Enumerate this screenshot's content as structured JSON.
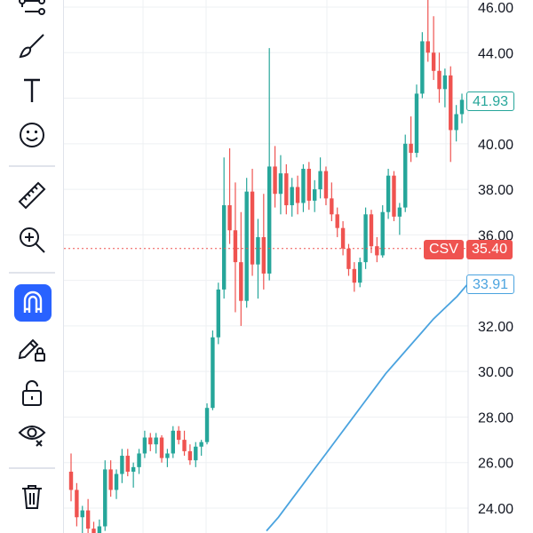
{
  "toolbar": {
    "tools": [
      {
        "name": "trend-lines-icon"
      },
      {
        "name": "brush-icon"
      },
      {
        "name": "text-icon",
        "glyph": "T"
      },
      {
        "name": "emoji-icon"
      },
      {
        "name": "ruler-icon"
      },
      {
        "name": "zoom-in-icon"
      },
      {
        "name": "magnet-icon",
        "active": true
      },
      {
        "name": "lock-drawing-icon"
      },
      {
        "name": "unlock-icon"
      },
      {
        "name": "eye-icon"
      },
      {
        "name": "trash-icon"
      }
    ]
  },
  "price_axis": {
    "ticks": [
      "46.00",
      "44.00",
      "40.00",
      "38.00",
      "36.00",
      "32.00",
      "30.00",
      "28.00",
      "26.00",
      "24.00"
    ]
  },
  "badges": {
    "last_price": "41.93",
    "crosshair_symbol": "CSV",
    "crosshair_price": "35.40",
    "ma_value": "33.91"
  },
  "colors": {
    "up": "#26a69a",
    "down": "#ef5350",
    "ma": "#4aa3df",
    "crosshair": "#ef5350",
    "active_tool": "#2962ff",
    "grid": "#eef0f3"
  },
  "chart_data": {
    "type": "candlestick",
    "y_range": [
      23,
      46.4
    ],
    "crosshair_y": 35.4,
    "candles": [
      [
        25.6,
        26.4,
        24.3,
        24.8
      ],
      [
        24.8,
        25.1,
        23.2,
        23.6
      ],
      [
        23.6,
        24.1,
        22.8,
        23.9
      ],
      [
        23.9,
        24.4,
        22.9,
        23.1
      ],
      [
        23.1,
        23.4,
        22.5,
        22.8
      ],
      [
        22.8,
        23.5,
        22.4,
        23.2
      ],
      [
        23.2,
        26.1,
        23.0,
        25.7
      ],
      [
        25.7,
        26.1,
        24.5,
        24.8
      ],
      [
        24.8,
        25.7,
        24.4,
        25.5
      ],
      [
        25.5,
        26.6,
        25.1,
        26.3
      ],
      [
        26.3,
        26.6,
        25.4,
        25.6
      ],
      [
        25.6,
        26.0,
        24.9,
        25.8
      ],
      [
        25.8,
        26.6,
        25.5,
        26.4
      ],
      [
        26.4,
        27.4,
        26.2,
        27.1
      ],
      [
        27.1,
        27.3,
        26.5,
        26.8
      ],
      [
        26.8,
        27.3,
        26.4,
        27.1
      ],
      [
        27.1,
        27.2,
        26.0,
        26.2
      ],
      [
        26.2,
        26.6,
        25.8,
        26.4
      ],
      [
        26.4,
        27.6,
        26.2,
        27.4
      ],
      [
        27.4,
        27.6,
        26.8,
        27.0
      ],
      [
        27.0,
        27.4,
        26.3,
        26.5
      ],
      [
        26.5,
        26.8,
        25.9,
        26.1
      ],
      [
        26.1,
        26.9,
        25.8,
        26.7
      ],
      [
        26.7,
        27.0,
        26.3,
        26.9
      ],
      [
        26.9,
        28.6,
        26.8,
        28.4
      ],
      [
        28.4,
        31.8,
        28.3,
        31.5
      ],
      [
        31.5,
        33.9,
        31.2,
        33.6
      ],
      [
        33.6,
        39.4,
        33.2,
        37.3
      ],
      [
        37.3,
        39.8,
        35.6,
        36.2
      ],
      [
        36.2,
        38.3,
        32.6,
        34.8
      ],
      [
        34.8,
        37.0,
        32.0,
        33.1
      ],
      [
        33.1,
        38.5,
        32.8,
        37.9
      ],
      [
        37.9,
        38.9,
        34.2,
        34.7
      ],
      [
        34.7,
        36.7,
        33.2,
        35.9
      ],
      [
        35.9,
        37.8,
        33.6,
        34.3
      ],
      [
        34.3,
        44.2,
        34.0,
        39.0
      ],
      [
        39.0,
        39.9,
        37.2,
        37.8
      ],
      [
        37.8,
        39.5,
        36.9,
        38.7
      ],
      [
        38.7,
        39.1,
        36.9,
        37.3
      ],
      [
        37.3,
        38.5,
        36.8,
        38.1
      ],
      [
        38.1,
        38.6,
        36.9,
        37.4
      ],
      [
        37.4,
        39.1,
        37.0,
        38.9
      ],
      [
        38.9,
        39.2,
        37.1,
        37.5
      ],
      [
        37.5,
        38.4,
        37.0,
        38.0
      ],
      [
        38.0,
        39.4,
        37.6,
        38.8
      ],
      [
        38.8,
        39.0,
        37.3,
        37.6
      ],
      [
        37.6,
        38.3,
        36.6,
        36.9
      ],
      [
        36.9,
        37.2,
        35.9,
        36.3
      ],
      [
        36.3,
        36.6,
        35.1,
        35.4
      ],
      [
        35.4,
        35.6,
        34.2,
        34.5
      ],
      [
        34.5,
        34.8,
        33.5,
        33.9
      ],
      [
        33.9,
        35.0,
        33.7,
        34.8
      ],
      [
        34.8,
        37.2,
        34.5,
        36.9
      ],
      [
        36.9,
        37.1,
        35.2,
        35.5
      ],
      [
        35.5,
        35.9,
        34.8,
        35.1
      ],
      [
        35.1,
        37.3,
        35.0,
        37.0
      ],
      [
        37.0,
        38.9,
        36.7,
        38.6
      ],
      [
        38.6,
        38.8,
        36.6,
        36.8
      ],
      [
        36.8,
        37.4,
        36.0,
        37.2
      ],
      [
        37.2,
        40.4,
        37.0,
        40.0
      ],
      [
        40.0,
        41.2,
        39.2,
        39.6
      ],
      [
        39.6,
        42.6,
        39.4,
        42.2
      ],
      [
        42.2,
        44.9,
        42.0,
        44.5
      ],
      [
        44.5,
        46.4,
        43.6,
        44.0
      ],
      [
        44.0,
        45.6,
        42.8,
        43.2
      ],
      [
        43.2,
        44.0,
        41.8,
        42.4
      ],
      [
        42.4,
        43.3,
        41.6,
        43.0
      ],
      [
        43.0,
        43.4,
        39.2,
        40.6
      ],
      [
        40.6,
        41.7,
        40.1,
        41.3
      ],
      [
        41.3,
        42.2,
        40.9,
        41.93
      ]
    ],
    "ma_series": [
      23.0,
      23.6,
      24.3,
      25.0,
      25.7,
      26.4,
      27.1,
      27.8,
      28.5,
      29.2,
      29.9,
      30.5,
      31.1,
      31.7,
      32.3,
      32.8,
      33.3,
      33.91
    ]
  }
}
